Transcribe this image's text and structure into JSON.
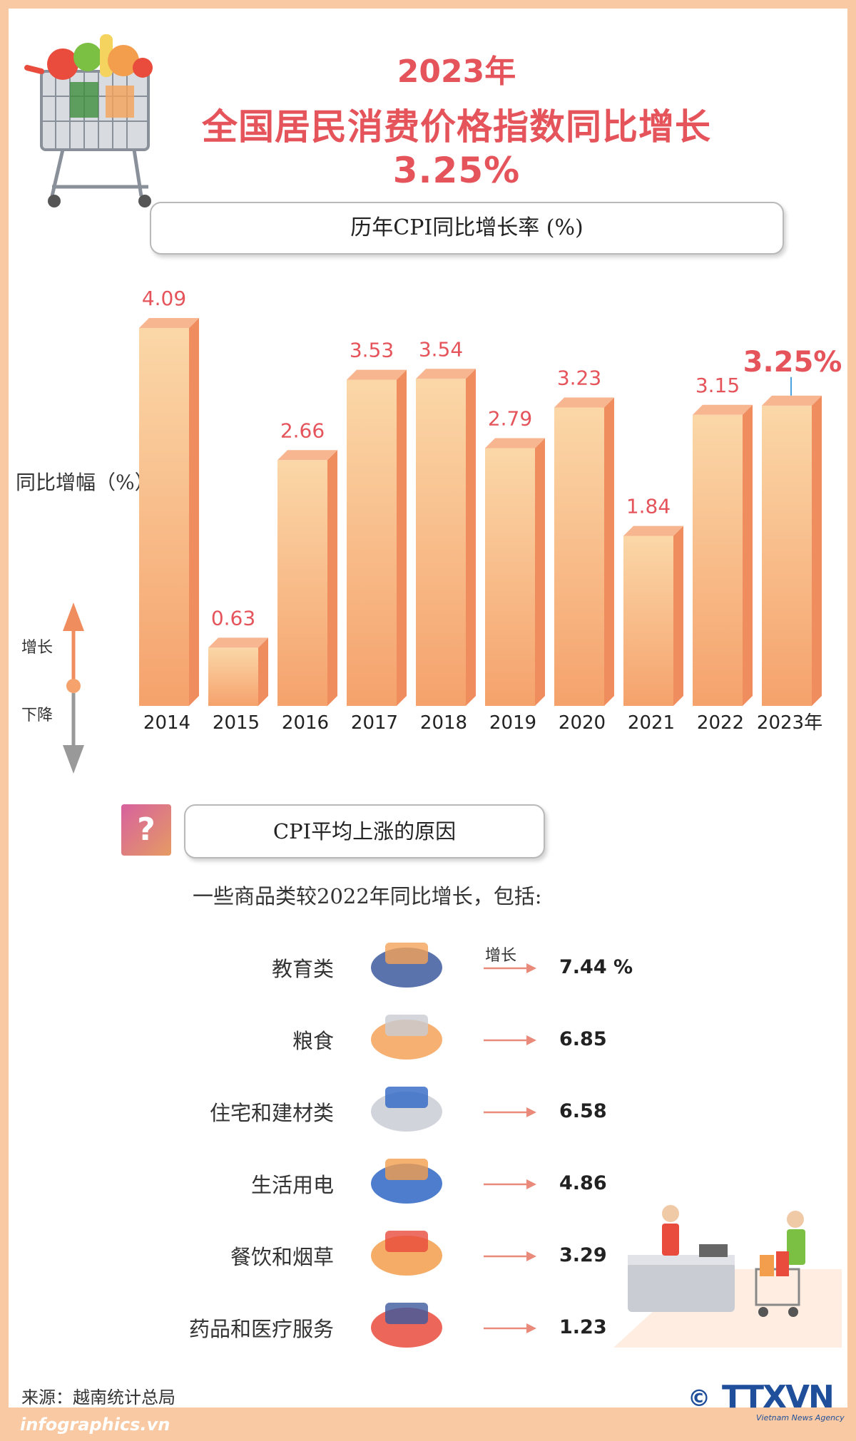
{
  "header": {
    "title_year": "2023年",
    "title_main": "全国居民消费价格指数同比增长3.25%"
  },
  "chart_section": {
    "pill_title": "历年CPI同比增长率 (%)",
    "axis_label": "同比增幅（%）",
    "up_label": "增长",
    "down_label": "下降"
  },
  "chart_data": {
    "type": "bar",
    "title": "历年CPI同比增长率 (%)",
    "ylabel": "同比增幅（%）",
    "categories": [
      "2014",
      "2015",
      "2016",
      "2017",
      "2018",
      "2019",
      "2020",
      "2021",
      "2022",
      "2023年"
    ],
    "values": [
      4.09,
      0.63,
      2.66,
      3.53,
      3.54,
      2.79,
      3.23,
      1.84,
      3.15,
      3.25
    ],
    "value_labels": [
      "4.09",
      "0.63",
      "2.66",
      "3.53",
      "3.54",
      "2.79",
      "3.23",
      "1.84",
      "3.15",
      "3.25%"
    ],
    "highlight_index": 9,
    "ylim": [
      0,
      4.09
    ],
    "grid": false,
    "colors": {
      "bar_front_top": "#fbd7a8",
      "bar_front_bottom": "#f5a26c",
      "bar_side": "#f08d5f",
      "bar_top": "#f7b590",
      "label": "#e5545b"
    }
  },
  "causes": {
    "pill_title": "CPI平均上涨的原因",
    "question_icon": "?",
    "intro": "一些商品类较2022年同比增长，包括:",
    "increase_label": "增长",
    "unit": "%",
    "items": [
      {
        "label": "教育类",
        "value": "7.44",
        "icon": "graduation-cap-books-icon"
      },
      {
        "label": "粮食",
        "value": "6.85",
        "icon": "fried-rice-bowl-icon"
      },
      {
        "label": "住宅和建材类",
        "value": "6.58",
        "icon": "construction-materials-icon"
      },
      {
        "label": "生活用电",
        "value": "4.86",
        "icon": "power-socket-plug-icon"
      },
      {
        "label": "餐饮和烟草",
        "value": "3.29",
        "icon": "drinks-cigarettes-icon"
      },
      {
        "label": "药品和医疗服务",
        "value": "1.23",
        "icon": "medicine-bottle-icon"
      }
    ]
  },
  "footer": {
    "source": "来源：越南统计总局",
    "site": "infographics.vn",
    "copyright": "©",
    "agency_logo": "TTXVN",
    "agency_sub": "Vietnam News Agency"
  }
}
